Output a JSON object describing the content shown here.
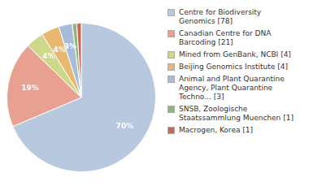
{
  "chart_data": {
    "type": "pie",
    "categories": [
      "Centre for Biodiversity\nGenomics [78]",
      "Canadian Centre for DNA\nBarcoding [21]",
      "Mined from GenBank, NCBI [4]",
      "Beijing Genomics Institute [4]",
      "Animal and Plant Quarantine\nAgency, Plant Quarantine\nTechno... [3]",
      "SNSB, Zoologische\nStaatssammlung Muenchen [1]",
      "Macrogen, Korea [1]"
    ],
    "values": [
      70,
      19,
      4,
      4,
      3,
      1,
      1
    ],
    "value_labels": [
      "70%",
      "19%",
      "4%",
      "4%",
      "3%",
      null,
      null
    ],
    "colors": [
      "#b8c9df",
      "#e8a090",
      "#cdd888",
      "#e8b870",
      "#a8bcda",
      "#8db87a",
      "#cc6655"
    ],
    "data_labels": true,
    "legend": "right"
  }
}
